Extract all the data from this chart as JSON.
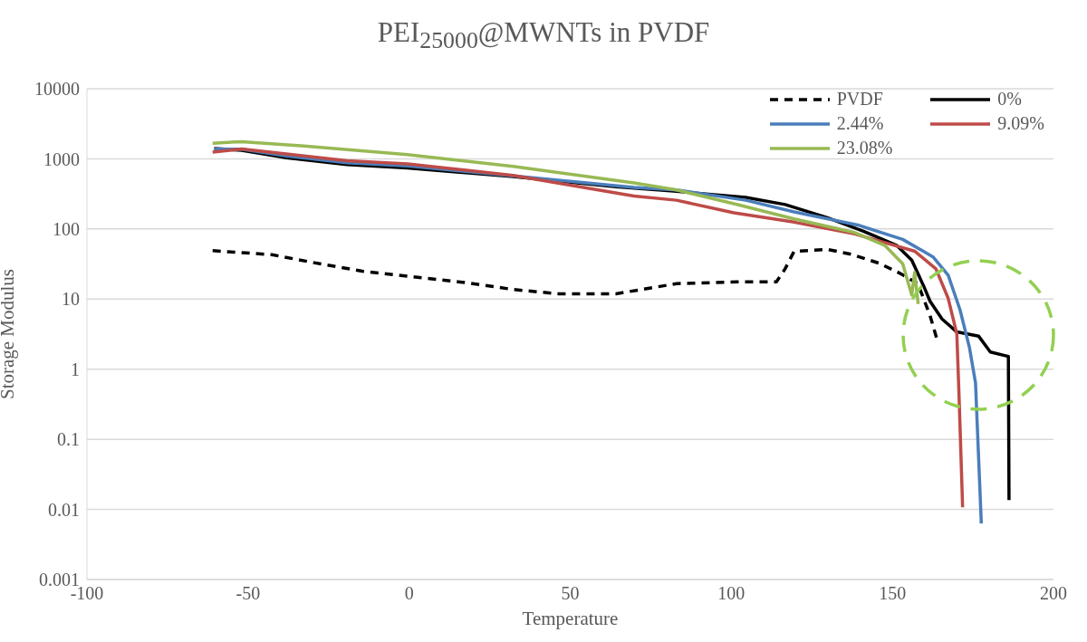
{
  "chart_data": {
    "type": "line",
    "title": "PEI$_{25000}$@MWNTs in PVDF",
    "xlabel": "Temperature",
    "ylabel": "Storage Modulus",
    "xlim": [
      -100,
      200
    ],
    "xticks": [
      -100,
      -50,
      0,
      50,
      100,
      150,
      200
    ],
    "ylim": [
      0.001,
      10000
    ],
    "yticks": [
      0.001,
      0.01,
      0.1,
      1,
      10,
      100,
      1000,
      10000
    ],
    "log": "y",
    "grid": "y",
    "legend": "top right",
    "series": [
      {
        "name": "PVDF",
        "color": "#000000",
        "line_style": "dashed",
        "x": [
          -61,
          -42.6,
          -29.5,
          -14.5,
          0.4,
          18.2,
          32.3,
          46.4,
          64.2,
          83,
          101.7,
          114,
          116.7,
          119.5,
          129.8,
          137.3,
          145.8,
          152.2,
          157.9,
          161.7,
          164
        ],
        "values": [
          49,
          43,
          33,
          25,
          21,
          17,
          13.7,
          11.9,
          11.9,
          16.6,
          17.6,
          17.6,
          27,
          48,
          51,
          43.5,
          32.5,
          23.5,
          16.6,
          5.8,
          2.5
        ]
      },
      {
        "name": "0%",
        "color": "#000000",
        "line_style": "solid",
        "x": [
          -60.5,
          -52,
          -38,
          -19.3,
          -0.5,
          32.3,
          64.2,
          83,
          104.5,
          116.7,
          129.8,
          141,
          151.4,
          156,
          159.8,
          161.7,
          165.4,
          170,
          176.8,
          180.4,
          186,
          186.2
        ],
        "values": [
          1410,
          1320,
          1035,
          830,
          740,
          560,
          400,
          344,
          282,
          223,
          145,
          93,
          58,
          36,
          15,
          9.3,
          5.2,
          3.4,
          2.95,
          1.76,
          1.52,
          0.0136
        ]
      },
      {
        "name": "2.44%",
        "color": "#4a7ebb",
        "line_style": "solid",
        "x": [
          -60.5,
          -52,
          -38,
          -19.3,
          -0.5,
          32.3,
          69.8,
          83,
          104.5,
          119.5,
          139.2,
          153.2,
          162.6,
          167.3,
          171,
          173.9,
          175.8,
          177.6
        ],
        "values": [
          1380,
          1370,
          1100,
          880,
          790,
          570,
          390,
          360,
          257,
          175,
          114,
          71,
          40,
          22,
          7,
          2.05,
          0.64,
          0.0063
        ]
      },
      {
        "name": "9.09%",
        "color": "#be4b48",
        "line_style": "solid",
        "x": [
          -61,
          -52,
          -19.3,
          -0.5,
          32.3,
          69.8,
          83,
          100.8,
          119.5,
          138.3,
          157,
          163.5,
          167.3,
          170,
          170.7,
          171.8
        ],
        "values": [
          1250,
          1380,
          940,
          850,
          580,
          295,
          257,
          170,
          125,
          85,
          48,
          27,
          10.3,
          3.2,
          0.4,
          0.0107
        ]
      },
      {
        "name": "23.08%",
        "color": "#98b954",
        "line_style": "solid",
        "x": [
          -61,
          -52,
          -32.6,
          -0.5,
          32.3,
          69.8,
          83,
          101.7,
          119.5,
          138.3,
          147.7,
          153.2,
          156,
          156.9,
          158
        ],
        "values": [
          1670,
          1760,
          1520,
          1150,
          780,
          455,
          360,
          224,
          139,
          89,
          58,
          32,
          11.4,
          24,
          8.5
        ]
      }
    ]
  }
}
